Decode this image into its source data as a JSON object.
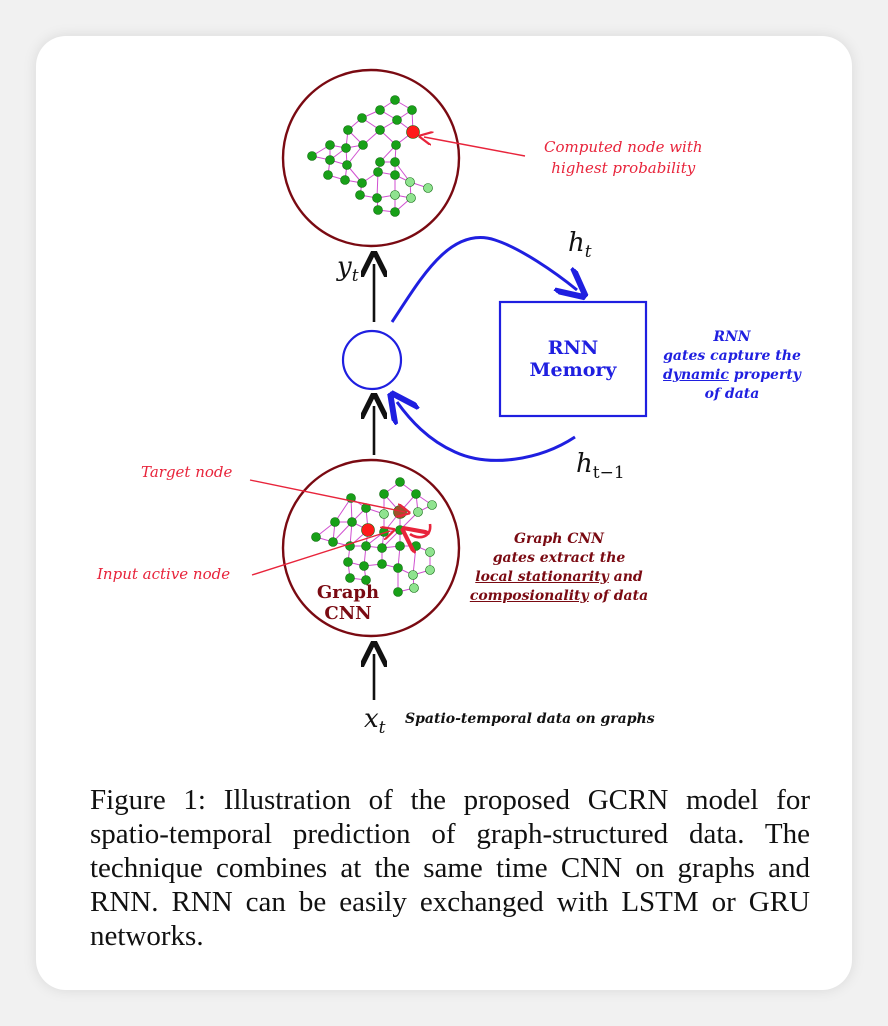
{
  "diagram": {
    "output_label": "y",
    "output_sub": "t",
    "input_label": "x",
    "input_sub": "t",
    "input_desc": "Spatio-temporal data on graphs",
    "h_out_label": "h",
    "h_out_sub": "t",
    "h_in_label": "h",
    "h_in_sub": "t−1",
    "rnn_box": [
      "RNN",
      "Memory"
    ],
    "graph_cnn_label": [
      "Graph",
      "CNN"
    ],
    "annotation_computed": [
      "Computed node with",
      "highest probability"
    ],
    "annotation_target": "Target node",
    "annotation_input_active": "Input active node",
    "rnn_note": {
      "line1": "RNN",
      "line2": "gates capture the",
      "line3_underlined": "dynamic",
      "line3_rest": " property",
      "line4": "of data"
    },
    "gcnn_note": {
      "line1": "Graph CNN",
      "line2": "gates extract the",
      "line3_underlined": "local stationarity",
      "line3_rest": " and",
      "line4_underlined": "composionality",
      "line4_rest": " of data"
    },
    "colors": {
      "circle_border": "#7a0a12",
      "rnn_blue": "#1f1fe0",
      "node_dark": "#18a018",
      "node_light": "#8fe38f",
      "edge": "#d04fd0",
      "highlight_red": "#ff1a1a"
    }
  },
  "caption": "Figure 1:  Illustration of the proposed GCRN model for spatio-temporal prediction of graph-structured data.  The technique combines at the same time CNN on graphs and RNN. RNN can be easily exchanged with LSTM or GRU networks."
}
